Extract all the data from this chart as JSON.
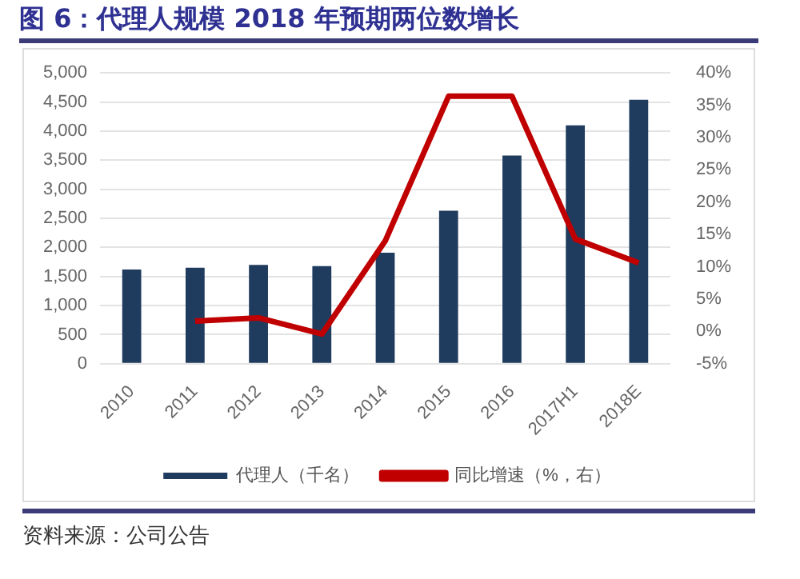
{
  "chart_data": {
    "type": "bar",
    "title": "图 6：代理人规模 2018 年预期两位数增长",
    "categories": [
      "2010",
      "2011",
      "2012",
      "2013",
      "2014",
      "2015",
      "2016",
      "2017H1",
      "2018E"
    ],
    "series": [
      {
        "name": "代理人（千名）",
        "color": "#1f3b5e",
        "values": [
          1620,
          1650,
          1700,
          1680,
          1910,
          2630,
          3580,
          4100,
          4540
        ]
      },
      {
        "name": "同比增速（%，右）",
        "type": "line",
        "axis": "y2",
        "color": "#c00000",
        "values": [
          null,
          1.6,
          2.1,
          -0.4,
          14,
          36.4,
          36.4,
          14.3,
          10.6
        ]
      }
    ],
    "ylim": [
      0,
      5000
    ],
    "yticks": [
      0,
      {
        "value": 500,
        "label": "500"
      },
      {
        "value": 1000,
        "label": "1,000"
      },
      {
        "value": 1500,
        "label": "1,500"
      },
      {
        "value": 2000,
        "label": "2,000"
      },
      {
        "value": 2500,
        "label": "2,500"
      },
      {
        "value": 3000,
        "label": "3,000"
      },
      {
        "value": 3500,
        "label": "3,500"
      },
      {
        "value": 4000,
        "label": "4,000"
      },
      {
        "value": 4500,
        "label": "4,500"
      },
      {
        "value": 5000,
        "label": "5,000"
      }
    ],
    "y2lim": [
      -5,
      40
    ],
    "y2ticks": [
      {
        "value": -5,
        "label": "-5%"
      },
      {
        "value": 0,
        "label": "0%"
      },
      {
        "value": 5,
        "label": "5%"
      },
      {
        "value": 10,
        "label": "10%"
      },
      {
        "value": 15,
        "label": "15%"
      },
      {
        "value": 20,
        "label": "20%"
      },
      {
        "value": 25,
        "label": "25%"
      },
      {
        "value": 30,
        "label": "30%"
      },
      {
        "value": 35,
        "label": "35%"
      },
      {
        "value": 40,
        "label": "40%"
      }
    ],
    "grid": "y",
    "legend": "bottom",
    "marker": "none",
    "annotations": [
      "资料来源：公司公告"
    ]
  }
}
